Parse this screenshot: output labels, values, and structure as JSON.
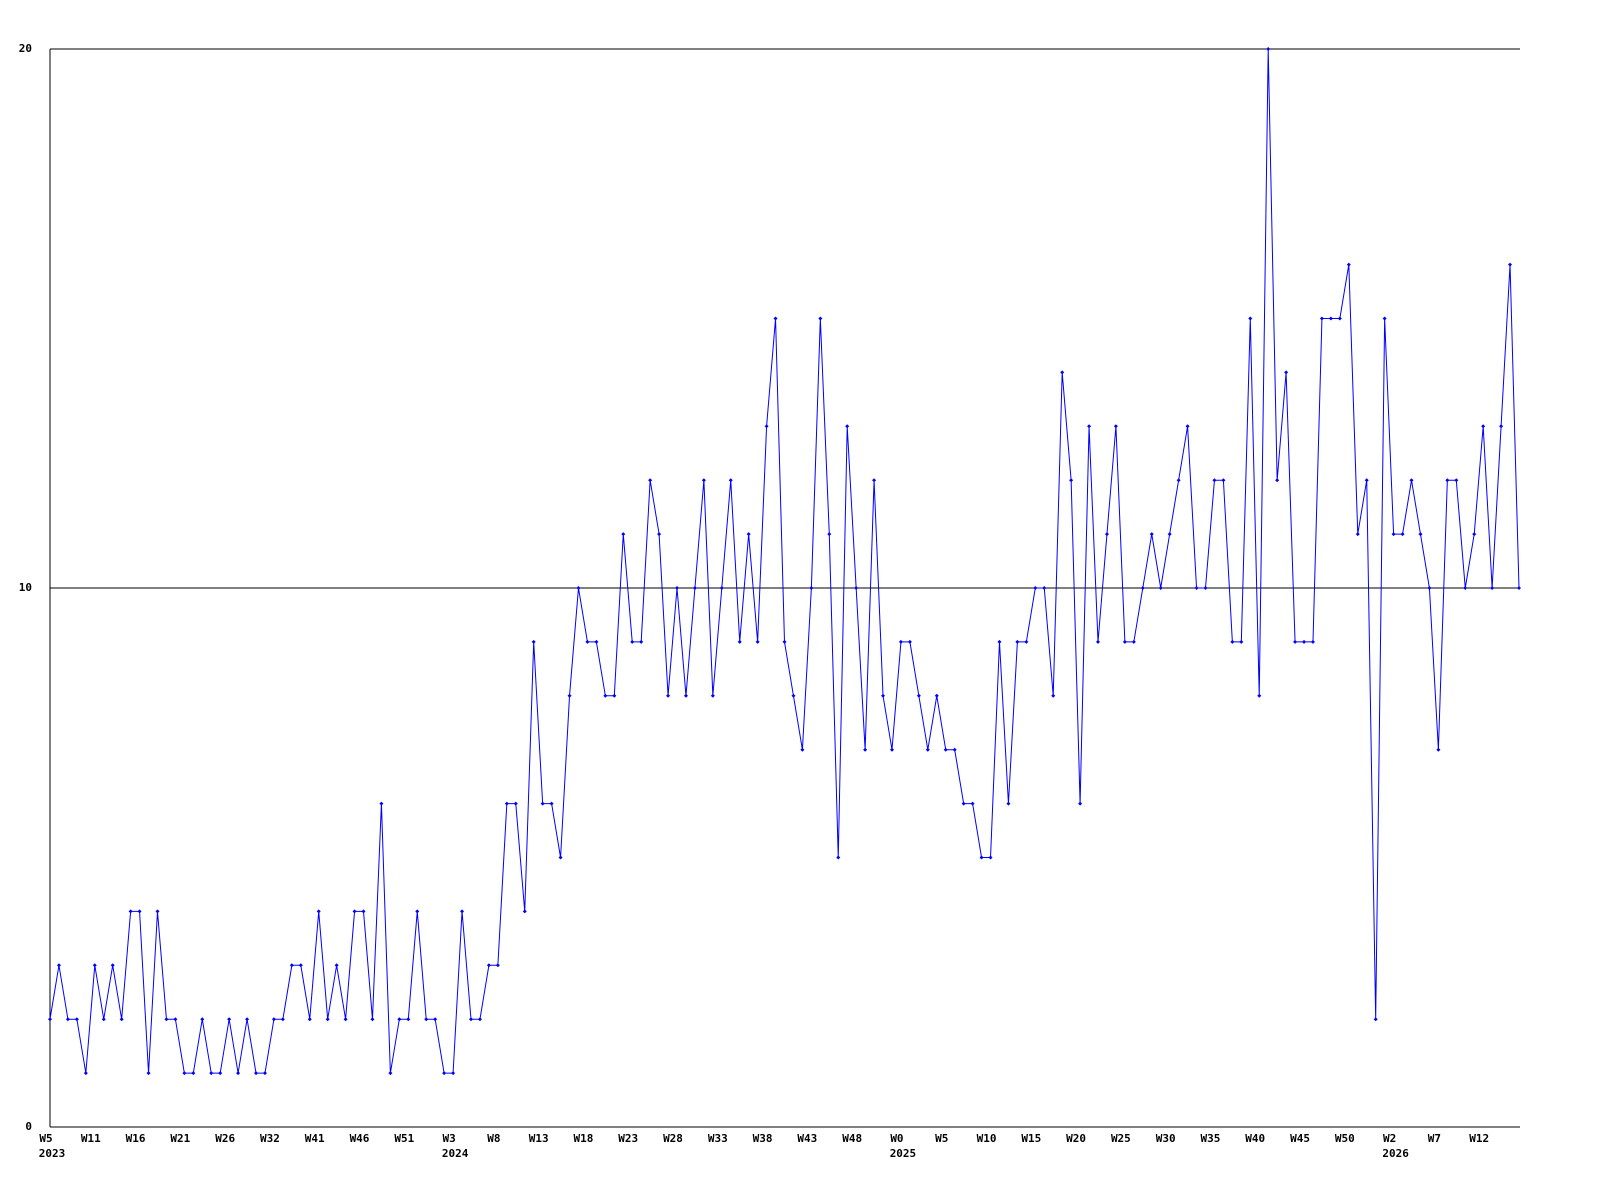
{
  "chart_data": {
    "type": "line",
    "color": "#0000ff",
    "grid": true,
    "ylim": [
      0,
      20
    ],
    "yticks": [
      0,
      10,
      20
    ],
    "categories": [
      "W5",
      null,
      null,
      null,
      null,
      "W11",
      null,
      null,
      null,
      null,
      "W16",
      null,
      null,
      null,
      null,
      "W21",
      null,
      null,
      null,
      null,
      "W26",
      null,
      null,
      null,
      null,
      "W32",
      null,
      null,
      null,
      null,
      "W41",
      null,
      null,
      null,
      null,
      "W46",
      null,
      null,
      null,
      null,
      "W51",
      null,
      null,
      null,
      null,
      "W3",
      null,
      null,
      null,
      null,
      "W8",
      null,
      null,
      null,
      null,
      "W13",
      null,
      null,
      null,
      null,
      "W18",
      null,
      null,
      null,
      null,
      "W23",
      null,
      null,
      null,
      null,
      "W28",
      null,
      null,
      null,
      null,
      "W33",
      null,
      null,
      null,
      null,
      "W38",
      null,
      null,
      null,
      null,
      "W43",
      null,
      null,
      null,
      null,
      "W48",
      null,
      null,
      null,
      null,
      "W0",
      null,
      null,
      null,
      null,
      "W5",
      null,
      null,
      null,
      null,
      "W10",
      null,
      null,
      null,
      null,
      "W15",
      null,
      null,
      null,
      null,
      "W20",
      null,
      null,
      null,
      null,
      "W25",
      null,
      null,
      null,
      null,
      "W30",
      null,
      null,
      null,
      null,
      "W35",
      null,
      null,
      null,
      null,
      "W40",
      null,
      null,
      null,
      null,
      "W45",
      null,
      null,
      null,
      null,
      "W50",
      null,
      null,
      null,
      null,
      "W2",
      null,
      null,
      null,
      null,
      "W7",
      null,
      null,
      null,
      null,
      "W12",
      null,
      null,
      null,
      null
    ],
    "years": [
      "2023",
      null,
      null,
      null,
      null,
      null,
      null,
      null,
      null,
      null,
      null,
      null,
      null,
      null,
      null,
      null,
      null,
      null,
      null,
      null,
      null,
      null,
      null,
      null,
      null,
      null,
      null,
      null,
      null,
      null,
      null,
      null,
      null,
      null,
      null,
      null,
      null,
      null,
      null,
      null,
      null,
      null,
      null,
      null,
      null,
      "2024",
      null,
      null,
      null,
      null,
      null,
      null,
      null,
      null,
      null,
      null,
      null,
      null,
      null,
      null,
      null,
      null,
      null,
      null,
      null,
      null,
      null,
      null,
      null,
      null,
      null,
      null,
      null,
      null,
      null,
      null,
      null,
      null,
      null,
      null,
      null,
      null,
      null,
      null,
      null,
      null,
      null,
      null,
      null,
      null,
      null,
      null,
      null,
      null,
      null,
      "2025",
      null,
      null,
      null,
      null,
      null,
      null,
      null,
      null,
      null,
      null,
      null,
      null,
      null,
      null,
      null,
      null,
      null,
      null,
      null,
      null,
      null,
      null,
      null,
      null,
      null,
      null,
      null,
      null,
      null,
      null,
      null,
      null,
      null,
      null,
      null,
      null,
      null,
      null,
      null,
      null,
      null,
      null,
      null,
      null,
      null,
      null,
      null,
      null,
      null,
      null,
      null,
      null,
      null,
      null,
      "2026",
      null,
      null,
      null,
      null,
      null,
      null,
      null,
      null,
      null,
      null,
      null,
      null,
      null,
      null
    ],
    "values": [
      2,
      3,
      2,
      2,
      1,
      3,
      2,
      3,
      2,
      4,
      4,
      1,
      4,
      2,
      2,
      1,
      1,
      2,
      1,
      1,
      2,
      1,
      2,
      1,
      1,
      2,
      2,
      3,
      3,
      2,
      4,
      2,
      3,
      2,
      4,
      4,
      2,
      6,
      1,
      2,
      2,
      4,
      2,
      2,
      1,
      1,
      4,
      2,
      2,
      3,
      3,
      6,
      6,
      4,
      9,
      6,
      6,
      5,
      8,
      10,
      9,
      9,
      8,
      8,
      11,
      9,
      9,
      12,
      11,
      8,
      10,
      8,
      10,
      12,
      8,
      10,
      12,
      9,
      11,
      9,
      13,
      15,
      9,
      8,
      7,
      10,
      15,
      11,
      5,
      13,
      10,
      7,
      12,
      8,
      7,
      9,
      9,
      8,
      7,
      8,
      7,
      7,
      6,
      6,
      5,
      5,
      9,
      6,
      9,
      9,
      10,
      10,
      8,
      14,
      12,
      6,
      13,
      9,
      11,
      13,
      9,
      9,
      10,
      11,
      10,
      11,
      12,
      13,
      10,
      10,
      12,
      12,
      9,
      9,
      15,
      8,
      20,
      12,
      14,
      9,
      9,
      9,
      15,
      15,
      15,
      16,
      11,
      12,
      2,
      15,
      11,
      11,
      12,
      11,
      10,
      7,
      12,
      12,
      10,
      11,
      13,
      10,
      13,
      16,
      10
    ]
  }
}
